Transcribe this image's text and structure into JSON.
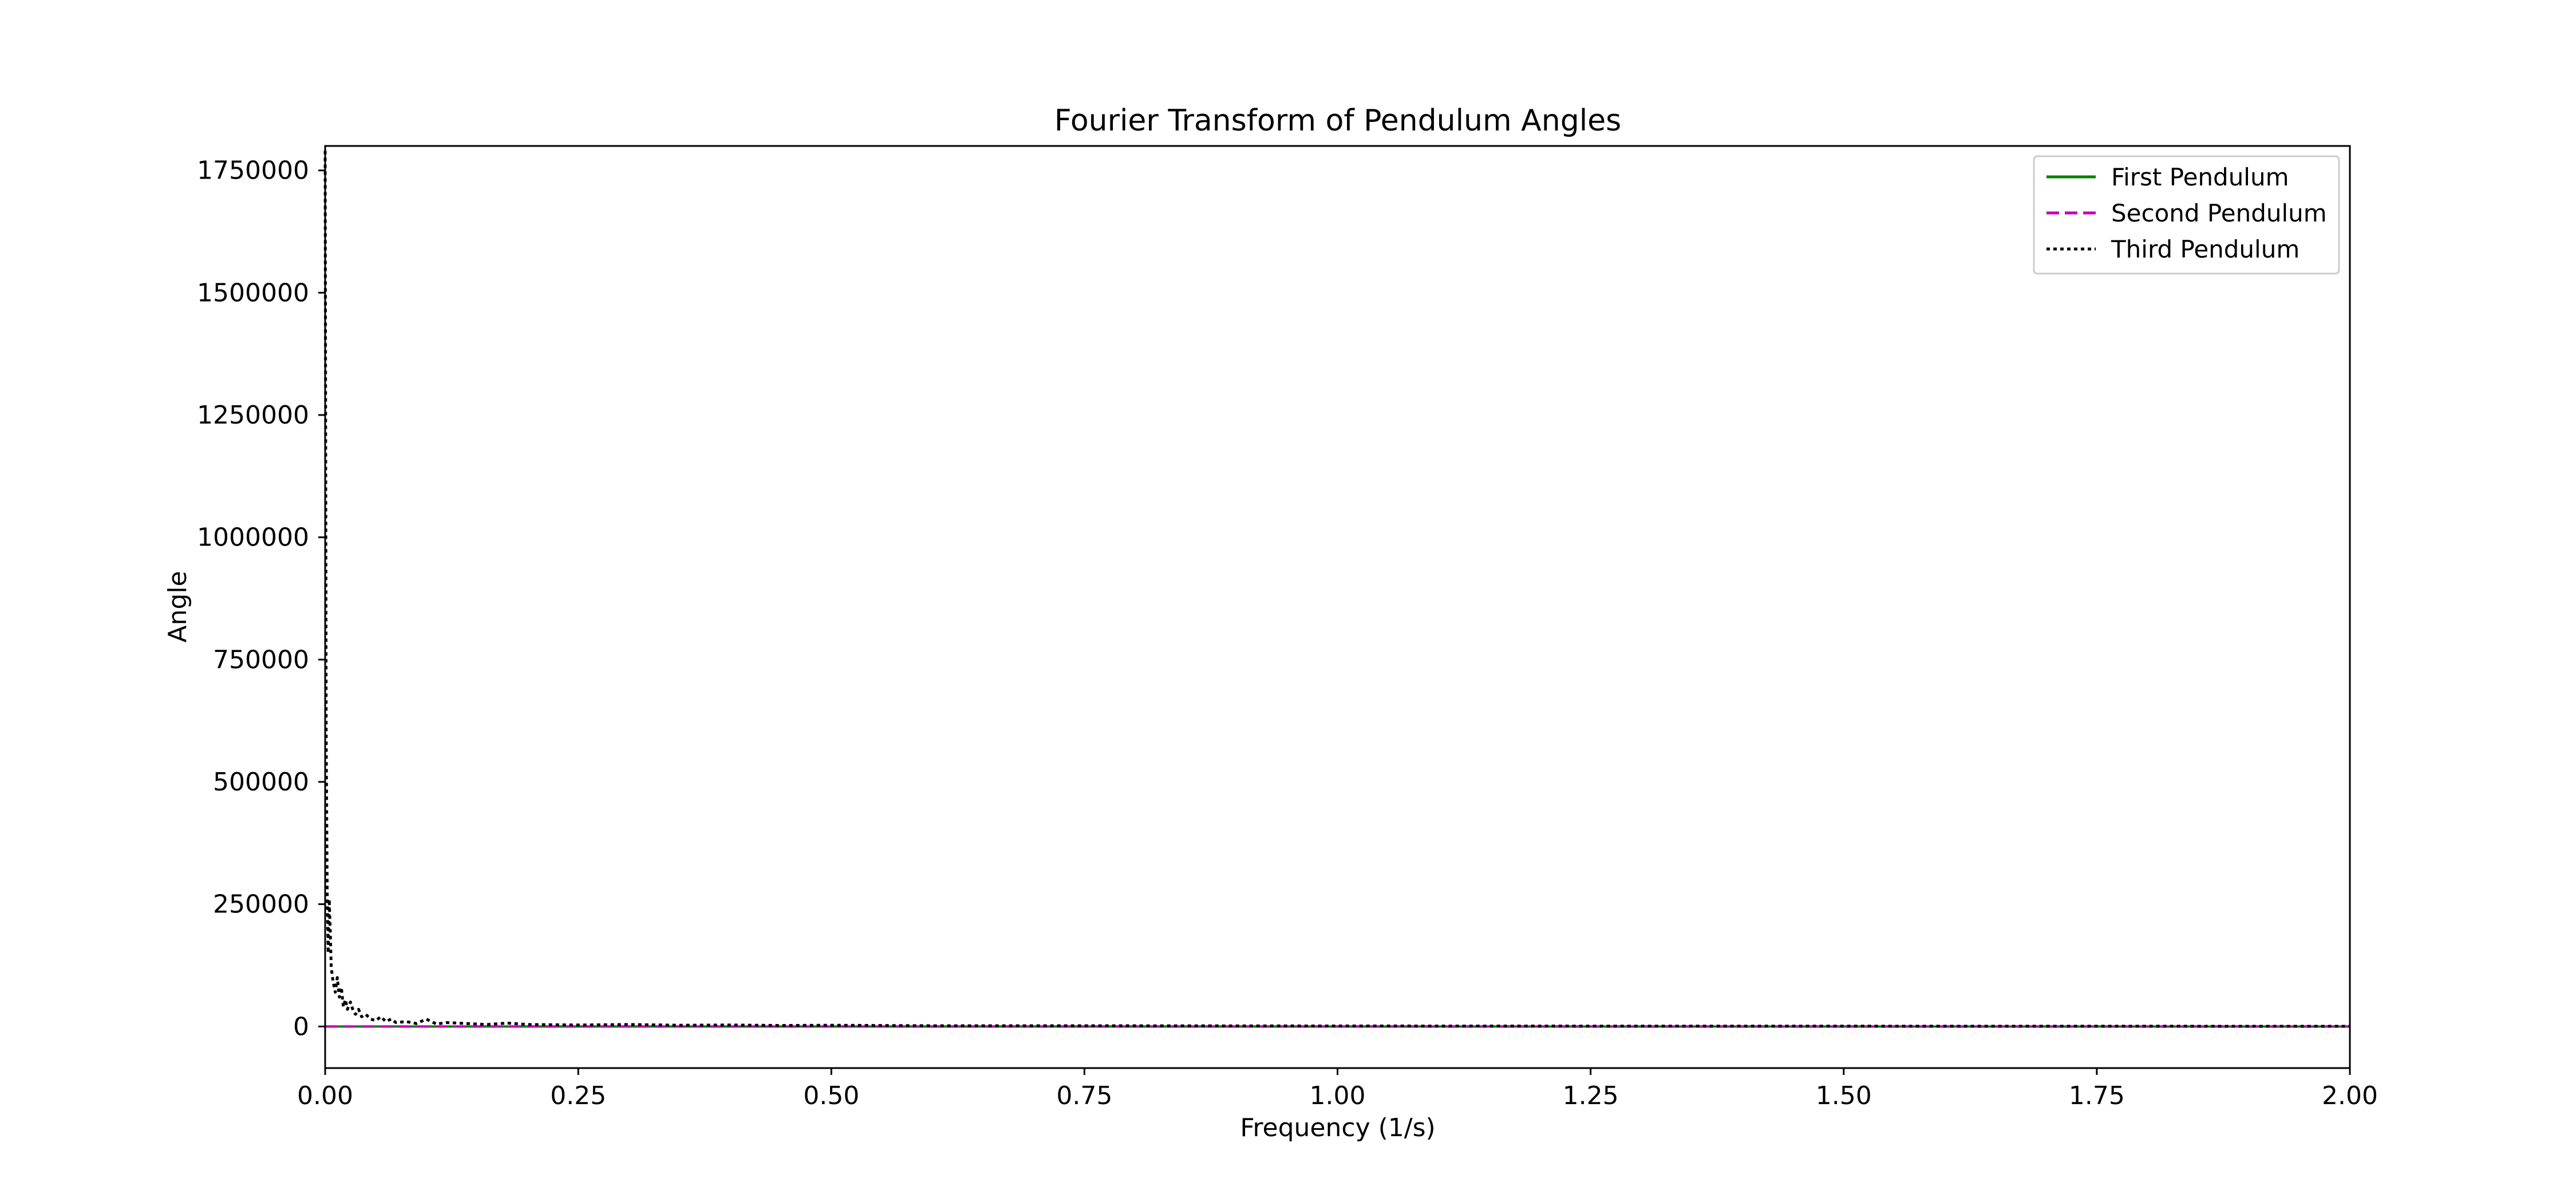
{
  "chart_data": {
    "type": "line",
    "title": "Fourier Transform of Pendulum Angles",
    "xlabel": "Frequency (1/s)",
    "ylabel": "Angle",
    "xlim": [
      0.0,
      2.0
    ],
    "ylim": [
      -85000,
      1800000
    ],
    "x_ticks": [
      0.0,
      0.25,
      0.5,
      0.75,
      1.0,
      1.25,
      1.5,
      1.75,
      2.0
    ],
    "x_tick_labels": [
      "0.00",
      "0.25",
      "0.50",
      "0.75",
      "1.00",
      "1.25",
      "1.50",
      "1.75",
      "2.00"
    ],
    "y_ticks": [
      0,
      250000,
      500000,
      750000,
      1000000,
      1250000,
      1500000,
      1750000
    ],
    "y_tick_labels": [
      "0",
      "250000",
      "500000",
      "750000",
      "1000000",
      "1250000",
      "1500000",
      "1750000"
    ],
    "grid": false,
    "legend_position": "top-right",
    "series": [
      {
        "name": "First Pendulum",
        "color": "#008000",
        "style": "solid",
        "x": [
          0.0,
          0.05,
          0.1,
          0.25,
          0.5,
          0.75,
          1.0,
          1.25,
          1.5,
          1.75,
          2.0
        ],
        "y": [
          0,
          0,
          0,
          0,
          0,
          0,
          0,
          0,
          0,
          0,
          0
        ]
      },
      {
        "name": "Second Pendulum",
        "color": "#bf00bf",
        "style": "dashed",
        "x": [
          0.0,
          0.05,
          0.1,
          0.25,
          0.5,
          0.75,
          1.0,
          1.25,
          1.5,
          1.75,
          2.0
        ],
        "y": [
          0,
          0,
          0,
          0,
          0,
          0,
          0,
          0,
          0,
          0,
          0
        ]
      },
      {
        "name": "Third Pendulum",
        "color": "#000000",
        "style": "dotted",
        "x": [
          0.0,
          0.001,
          0.002,
          0.003,
          0.004,
          0.005,
          0.006,
          0.008,
          0.01,
          0.012,
          0.014,
          0.016,
          0.018,
          0.02,
          0.022,
          0.025,
          0.028,
          0.03,
          0.033,
          0.036,
          0.04,
          0.045,
          0.05,
          0.055,
          0.06,
          0.065,
          0.07,
          0.08,
          0.09,
          0.1,
          0.11,
          0.12,
          0.14,
          0.16,
          0.18,
          0.2,
          0.25,
          0.3,
          0.35,
          0.4,
          0.45,
          0.5,
          0.6,
          0.75,
          1.0,
          1.25,
          1.5,
          1.75,
          2.0
        ],
        "y": [
          1790000,
          600000,
          280000,
          150000,
          260000,
          200000,
          120000,
          90000,
          70000,
          100000,
          60000,
          80000,
          40000,
          55000,
          35000,
          50000,
          30000,
          25000,
          35000,
          20000,
          25000,
          15000,
          12000,
          20000,
          10000,
          15000,
          8000,
          10000,
          6000,
          15000,
          5000,
          8000,
          6000,
          4000,
          7000,
          4000,
          3000,
          4000,
          2500,
          3000,
          2000,
          2500,
          1500,
          1500,
          1000,
          800,
          600,
          500,
          400
        ]
      }
    ]
  }
}
